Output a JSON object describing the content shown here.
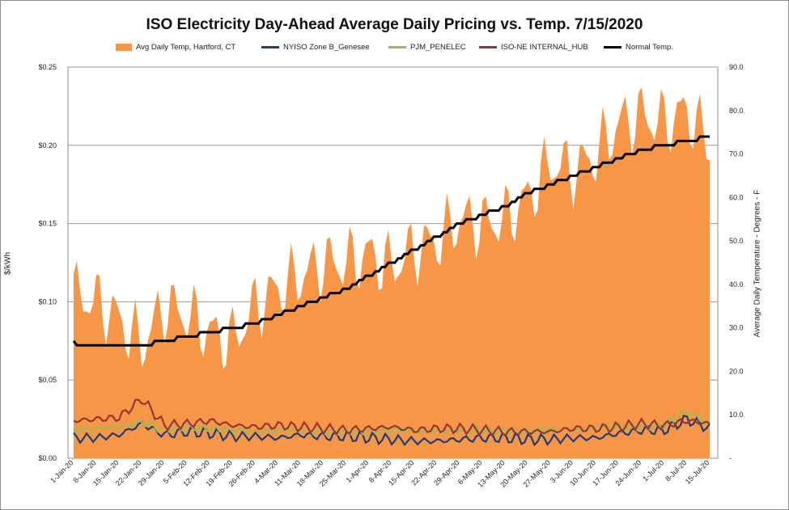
{
  "chart_data": {
    "type": "area",
    "title": "ISO Electricity Day-Ahead Average Daily Pricing vs. Temp. 7/15/2020",
    "ylabel_left": "$/kWh",
    "ylabel_right": "Average Daily Temperature - Degrees - F",
    "ylim_left": [
      0,
      0.25
    ],
    "ylim_right": [
      0,
      90
    ],
    "yticks_left": [
      "$0.00",
      "$0.05",
      "$0.10",
      "$0.15",
      "$0.20",
      "$0.25"
    ],
    "yticks_right": [
      "-",
      "10.0",
      "20.0",
      "30.0",
      "40.0",
      "50.0",
      "60.0",
      "70.0",
      "80.0",
      "90.0"
    ],
    "grid": "horizontal",
    "legend_position": "top",
    "x_tick_labels": [
      "1-Jan-20",
      "8-Jan-20",
      "15-Jan-20",
      "22-Jan-20",
      "29-Jan-20",
      "5-Feb-20",
      "12-Feb-20",
      "19-Feb-20",
      "26-Feb-20",
      "4-Mar-20",
      "11-Mar-20",
      "18-Mar-20",
      "25-Mar-20",
      "1-Apr-20",
      "8-Apr-20",
      "15-Apr-20",
      "22-Apr-20",
      "29-Apr-20",
      "6-May-20",
      "13-May-20",
      "20-May-20",
      "27-May-20",
      "3-Jun-20",
      "10-Jun-20",
      "17-Jun-20",
      "24-Jun-20",
      "1-Jul-20",
      "8-Jul-20",
      "15-Jul-20"
    ],
    "series": [
      {
        "name": "Avg Daily Temp, Hartford, CT",
        "type": "area",
        "axis": "right",
        "color": "#f79646",
        "weekly_values": [
          38,
          36,
          32,
          26,
          35,
          33,
          29,
          27,
          35,
          39,
          42,
          45,
          45,
          47,
          44,
          48,
          50,
          55,
          54,
          55,
          60,
          68,
          66,
          70,
          77,
          79,
          77,
          80,
          72
        ]
      },
      {
        "name": "NYISO Zone B_Genesee",
        "type": "line",
        "axis": "left",
        "color": "#1f3d7a",
        "weekly_values": [
          0.013,
          0.013,
          0.015,
          0.022,
          0.015,
          0.017,
          0.016,
          0.014,
          0.014,
          0.013,
          0.015,
          0.014,
          0.014,
          0.013,
          0.012,
          0.011,
          0.011,
          0.012,
          0.013,
          0.013,
          0.012,
          0.012,
          0.013,
          0.013,
          0.016,
          0.018,
          0.018,
          0.025,
          0.019
        ]
      },
      {
        "name": "PJM_PENELEC",
        "type": "line",
        "axis": "left",
        "color": "#9bbb59",
        "weekly_values": [
          0.018,
          0.019,
          0.02,
          0.023,
          0.018,
          0.02,
          0.019,
          0.018,
          0.017,
          0.018,
          0.018,
          0.017,
          0.017,
          0.017,
          0.018,
          0.017,
          0.017,
          0.018,
          0.018,
          0.017,
          0.017,
          0.019,
          0.018,
          0.019,
          0.02,
          0.02,
          0.021,
          0.03,
          0.022
        ]
      },
      {
        "name": "ISO-NE INTERNAL_HUB",
        "type": "line",
        "axis": "left",
        "color": "#953735",
        "weekly_values": [
          0.024,
          0.025,
          0.026,
          0.038,
          0.021,
          0.022,
          0.024,
          0.021,
          0.02,
          0.021,
          0.02,
          0.019,
          0.018,
          0.019,
          0.02,
          0.018,
          0.019,
          0.019,
          0.018,
          0.017,
          0.017,
          0.017,
          0.019,
          0.019,
          0.02,
          0.022,
          0.021,
          0.024,
          0.022
        ]
      },
      {
        "name": "Normal Temp.",
        "type": "line",
        "axis": "right",
        "color": "#000000",
        "weekly_values": [
          26.5,
          26,
          26,
          26,
          27,
          28,
          29,
          30,
          31,
          33,
          35,
          37,
          39,
          42,
          45,
          48,
          51,
          54,
          56,
          58,
          61,
          63,
          65,
          67,
          69,
          71,
          72,
          73,
          74
        ]
      }
    ]
  }
}
